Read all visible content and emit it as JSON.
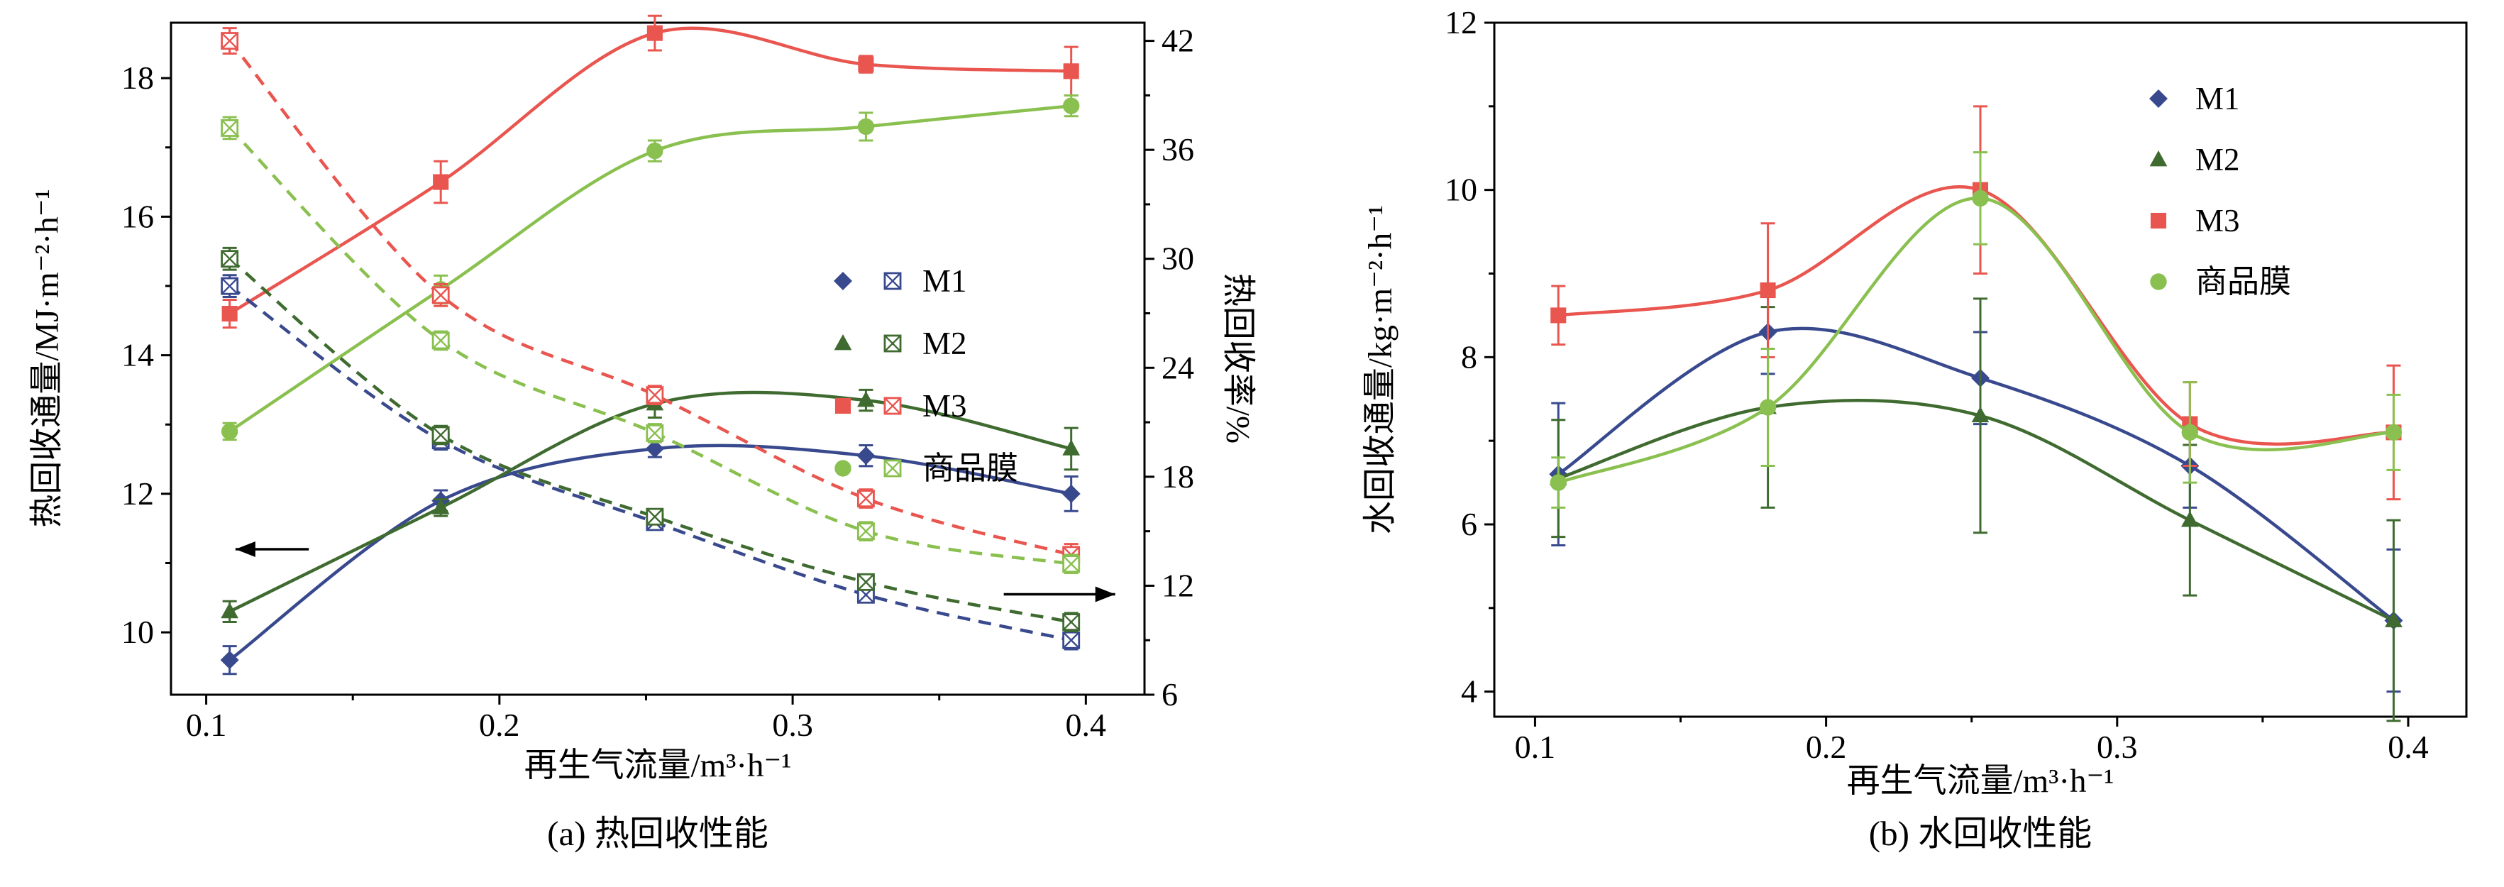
{
  "colors": {
    "m1_blue": "#39498e",
    "m2_dark_green": "#3f6b30",
    "m3_red": "#e9554f",
    "commercial_green": "#8ac04f",
    "axis_black": "#000000"
  },
  "chart_data": [
    {
      "id": "a",
      "type": "line",
      "caption": "(a) 热回收性能",
      "xlabel": "再生气流量/m³·h⁻¹",
      "ylabel_left": "热回收通量/MJ·m⁻²·h⁻¹",
      "ylabel_right": "热回收率/%",
      "grid": false,
      "legend_position": "center-right",
      "x": [
        0.108,
        0.18,
        0.253,
        0.325,
        0.395
      ],
      "xlim": [
        0.088,
        0.42
      ],
      "xticks": [
        0.1,
        0.2,
        0.3,
        0.4
      ],
      "xtick_labels": [
        "0.1",
        "0.2",
        "0.3",
        "0.4"
      ],
      "xminor": [
        0.15,
        0.25,
        0.35
      ],
      "ylim_left": [
        9.1,
        18.8
      ],
      "yticks_left": [
        10,
        12,
        14,
        16,
        18
      ],
      "ytick_left_labels": [
        "10",
        "12",
        "14",
        "16",
        "18"
      ],
      "yminor_left": [
        11,
        13,
        15,
        17
      ],
      "ylim_right": [
        6,
        43
      ],
      "yticks_right": [
        6,
        12,
        18,
        24,
        30,
        36,
        42
      ],
      "ytick_right_labels": [
        "6",
        "12",
        "18",
        "24",
        "30",
        "36",
        "42"
      ],
      "yminor_right": [
        9,
        15,
        21,
        27,
        33,
        39
      ],
      "series": [
        {
          "label": "M1",
          "quantity": "heat-flux",
          "axis": "left",
          "line": "solid",
          "marker": "diamond",
          "color": "#39498e",
          "values": [
            9.6,
            11.9,
            12.65,
            12.55,
            12.0
          ],
          "errors": [
            0.2,
            0.15,
            0.12,
            0.15,
            0.25
          ]
        },
        {
          "label": "M2",
          "quantity": "heat-flux",
          "axis": "left",
          "line": "solid",
          "marker": "triangle",
          "color": "#3f6b30",
          "values": [
            10.3,
            11.8,
            13.3,
            13.35,
            12.65
          ],
          "errors": [
            0.15,
            0.12,
            0.2,
            0.15,
            0.3
          ]
        },
        {
          "label": "M3",
          "quantity": "heat-flux",
          "axis": "left",
          "line": "solid",
          "marker": "square",
          "color": "#e9554f",
          "values": [
            14.6,
            16.5,
            18.65,
            18.2,
            18.1
          ],
          "errors": [
            0.2,
            0.3,
            0.25,
            0.12,
            0.35
          ]
        },
        {
          "label": "商品膜",
          "quantity": "heat-flux",
          "axis": "left",
          "line": "solid",
          "marker": "circle",
          "color": "#8ac04f",
          "values": [
            12.9,
            14.95,
            16.95,
            17.3,
            17.6
          ],
          "errors": [
            0.12,
            0.2,
            0.15,
            0.2,
            0.15
          ]
        },
        {
          "label": "M1",
          "quantity": "heat-recovery-rate",
          "axis": "right",
          "line": "dashed",
          "marker": "square-crossed",
          "color": "#39498e",
          "values": [
            28.5,
            20.0,
            15.5,
            11.5,
            9.0
          ],
          "errors": [
            0.6,
            0.5,
            0.4,
            0.4,
            0.5
          ]
        },
        {
          "label": "M2",
          "quantity": "heat-recovery-rate",
          "axis": "right",
          "line": "dashed",
          "marker": "square-crossed",
          "color": "#3f6b30",
          "values": [
            30.0,
            20.3,
            15.8,
            12.2,
            10.0
          ],
          "errors": [
            0.6,
            0.5,
            0.4,
            0.4,
            0.5
          ]
        },
        {
          "label": "M3",
          "quantity": "heat-recovery-rate",
          "axis": "right",
          "line": "dashed",
          "marker": "square-crossed",
          "color": "#e9554f",
          "values": [
            42.0,
            28.0,
            22.5,
            16.8,
            13.7
          ],
          "errors": [
            0.7,
            0.6,
            0.5,
            0.5,
            0.6
          ]
        },
        {
          "label": "商品膜",
          "quantity": "heat-recovery-rate",
          "axis": "right",
          "line": "dashed",
          "marker": "square-crossed",
          "color": "#8ac04f",
          "values": [
            37.2,
            25.5,
            20.4,
            15.0,
            13.2
          ],
          "errors": [
            0.6,
            0.5,
            0.5,
            0.5,
            0.5
          ]
        }
      ],
      "legend_labels": [
        "M1",
        "M2",
        "M3",
        "商品膜"
      ],
      "annotations": [
        {
          "name": "left-axis-arrow",
          "dir": "left",
          "x1": 0.135,
          "x2": 0.11,
          "y": 11.2
        },
        {
          "name": "right-axis-arrow",
          "dir": "right",
          "x1": 0.372,
          "x2": 0.41,
          "y": 10.55
        }
      ]
    },
    {
      "id": "b",
      "type": "line",
      "caption": "(b) 水回收性能",
      "xlabel": "再生气流量/m³·h⁻¹",
      "ylabel_left": "水回收通量/kg·m⁻²·h⁻¹",
      "grid": false,
      "legend_position": "top-right",
      "x": [
        0.108,
        0.18,
        0.253,
        0.325,
        0.395
      ],
      "xlim": [
        0.086,
        0.42
      ],
      "xticks": [
        0.1,
        0.2,
        0.3,
        0.4
      ],
      "xtick_labels": [
        "0.1",
        "0.2",
        "0.3",
        "0.4"
      ],
      "xminor": [
        0.15,
        0.25,
        0.35
      ],
      "ylim_left": [
        3.7,
        12.0
      ],
      "yticks_left": [
        4,
        6,
        8,
        10,
        12
      ],
      "ytick_left_labels": [
        "4",
        "6",
        "8",
        "10",
        "12"
      ],
      "yminor_left": [
        5,
        7,
        9,
        11
      ],
      "series": [
        {
          "label": "M1",
          "quantity": "water-flux",
          "axis": "left",
          "line": "solid",
          "marker": "diamond",
          "color": "#39498e",
          "values": [
            6.6,
            8.3,
            7.75,
            6.7,
            4.85
          ],
          "errors": [
            0.85,
            0.5,
            0.55,
            0.5,
            0.85
          ]
        },
        {
          "label": "M2",
          "quantity": "water-flux",
          "axis": "left",
          "line": "solid",
          "marker": "triangle",
          "color": "#3f6b30",
          "values": [
            6.55,
            7.4,
            7.3,
            6.05,
            4.85
          ],
          "errors": [
            0.7,
            1.2,
            1.4,
            0.9,
            1.2
          ]
        },
        {
          "label": "M3",
          "quantity": "water-flux",
          "axis": "left",
          "line": "solid",
          "marker": "square",
          "color": "#e9554f",
          "values": [
            8.5,
            8.8,
            10.0,
            7.2,
            7.1
          ],
          "errors": [
            0.35,
            0.8,
            1.0,
            0.5,
            0.8
          ]
        },
        {
          "label": "商品膜",
          "quantity": "water-flux",
          "axis": "left",
          "line": "solid",
          "marker": "circle",
          "color": "#8ac04f",
          "values": [
            6.5,
            7.4,
            9.9,
            7.1,
            7.1
          ],
          "errors": [
            0.3,
            0.7,
            0.55,
            0.6,
            0.45
          ]
        }
      ],
      "legend_labels": [
        "M1",
        "M2",
        "M3",
        "商品膜"
      ]
    }
  ]
}
